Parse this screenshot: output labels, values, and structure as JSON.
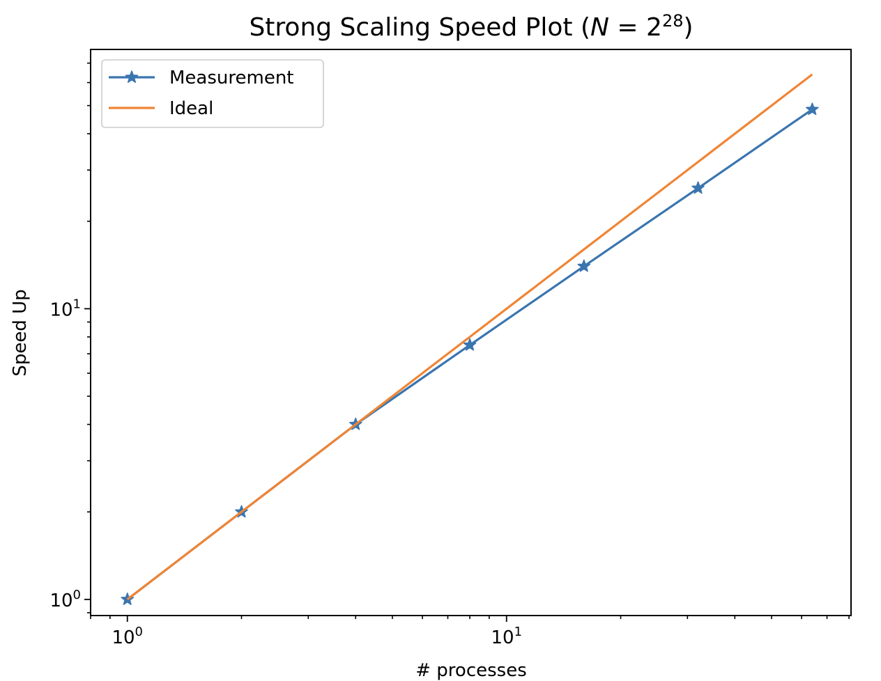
{
  "chart_data": {
    "type": "line",
    "title": "Strong Scaling Speed Plot",
    "title_math": {
      "variable": "N",
      "equals": "=",
      "base": "2",
      "exponent": "28"
    },
    "xlabel": "# processes",
    "ylabel": "Speed Up",
    "xscale": "log",
    "yscale": "log",
    "xlim": [
      0.8,
      81
    ],
    "ylim": [
      0.88,
      78
    ],
    "x_major_ticks": [
      {
        "value": 1,
        "base": "10",
        "exp": "0"
      },
      {
        "value": 10,
        "base": "10",
        "exp": "1"
      }
    ],
    "y_major_ticks": [
      {
        "value": 1,
        "base": "10",
        "exp": "0"
      },
      {
        "value": 10,
        "base": "10",
        "exp": "1"
      }
    ],
    "grid": false,
    "legend_position": "top-left",
    "series": [
      {
        "name": "Measurement",
        "color": "#3a75af",
        "marker": "star",
        "x": [
          1,
          2,
          4,
          8,
          16,
          32,
          64
        ],
        "y": [
          1.0,
          2.0,
          4.0,
          7.5,
          14.0,
          26.0,
          48.5
        ]
      },
      {
        "name": "Ideal",
        "color": "#ef8535",
        "marker": "none",
        "x": [
          1,
          2,
          4,
          8,
          16,
          32,
          64
        ],
        "y": [
          1,
          2,
          4,
          8,
          16,
          32,
          64
        ]
      }
    ]
  }
}
